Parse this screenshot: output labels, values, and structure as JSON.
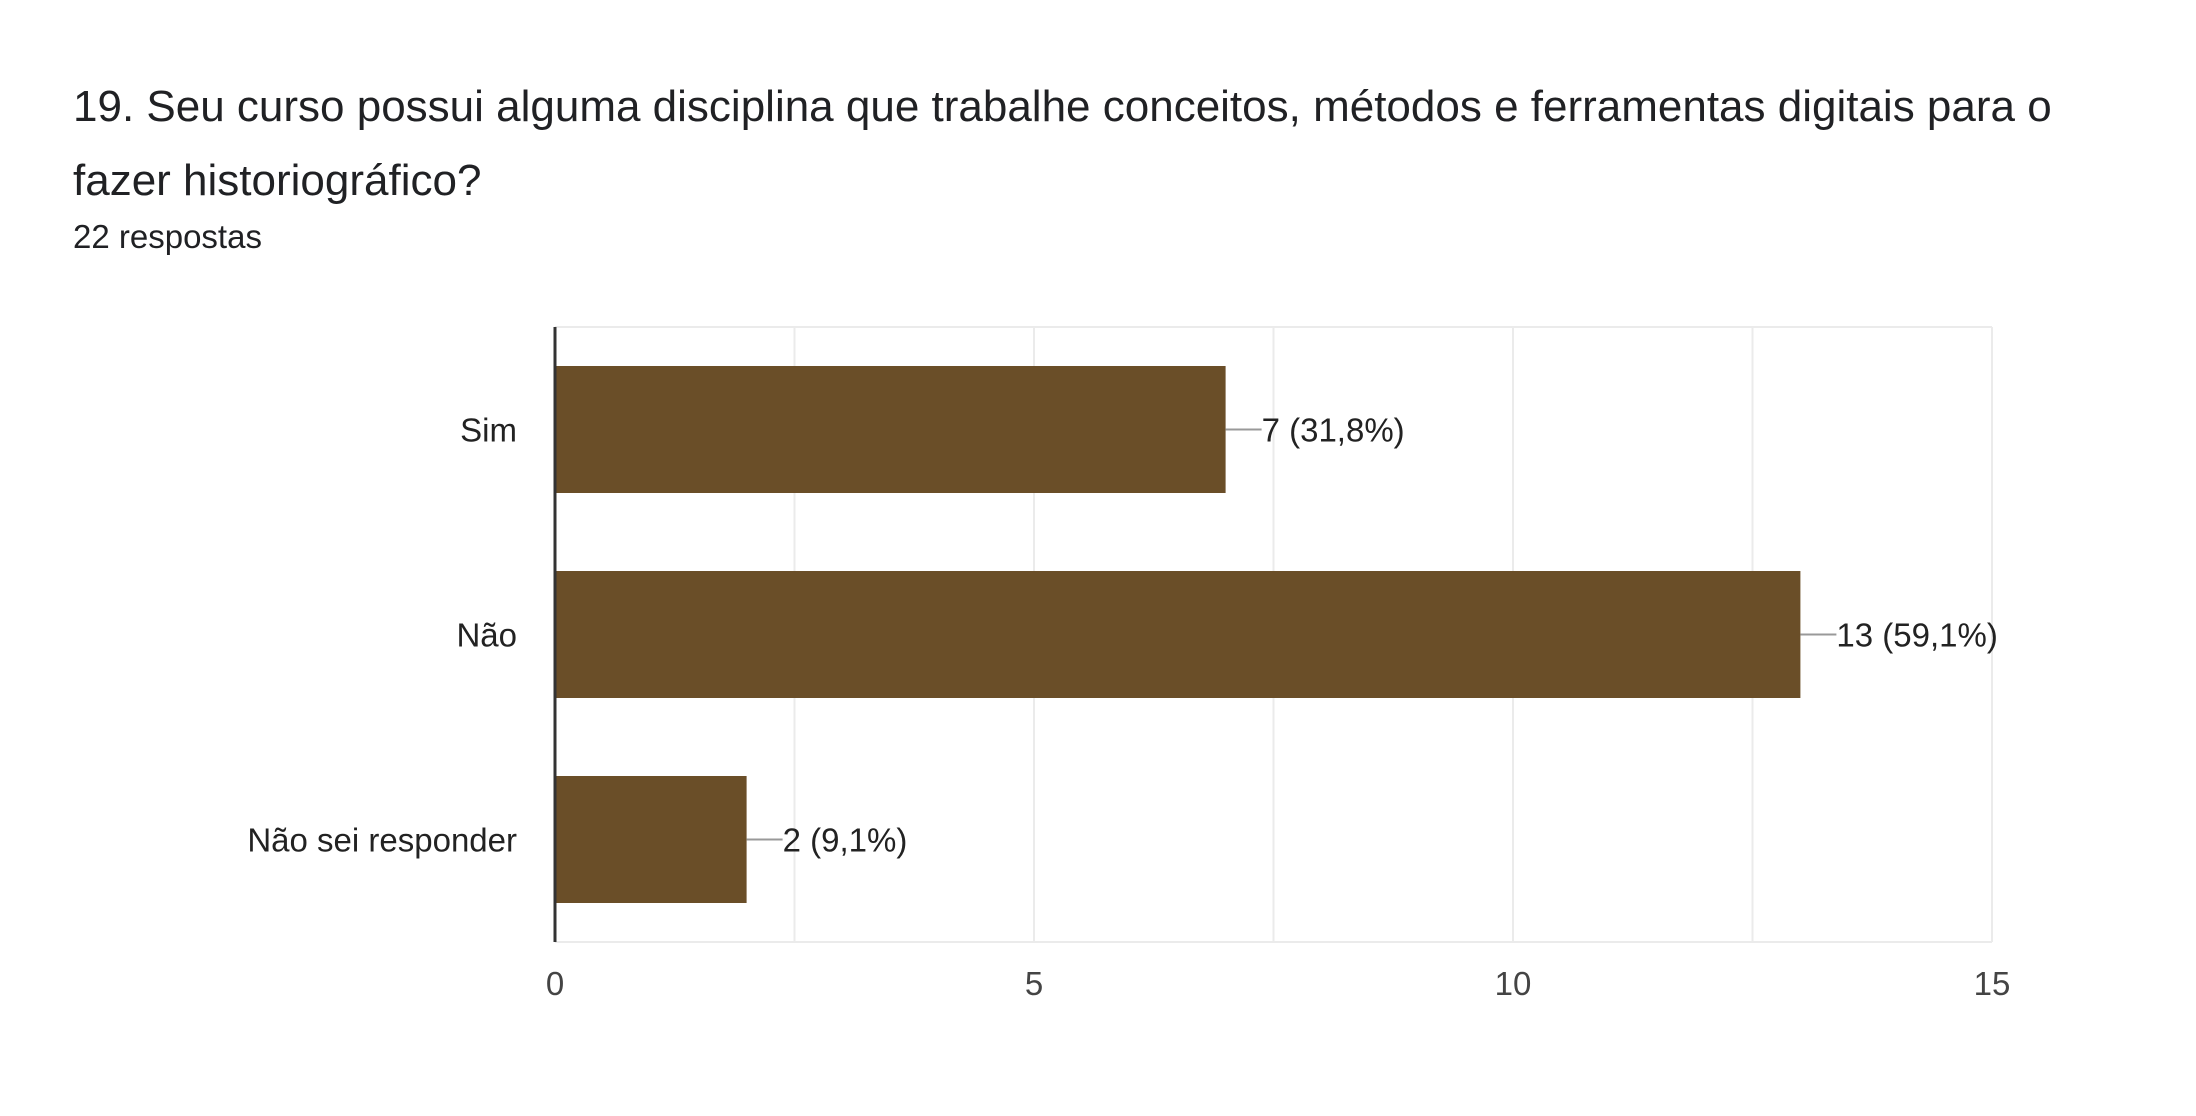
{
  "question": {
    "title": "19. Seu curso possui alguma disciplina que trabalhe conceitos, métodos e ferramentas digitais para o fazer historiográfico?",
    "responses": "22 respostas"
  },
  "colors": {
    "bar": "#6a4e28",
    "axis": "#333333",
    "grid": "#ebebeb",
    "leader": "#999999"
  },
  "chart_data": {
    "type": "bar",
    "orientation": "horizontal",
    "categories": [
      "Sim",
      "Não",
      "Não sei responder"
    ],
    "values": [
      7,
      13,
      2
    ],
    "data_labels": [
      "7 (31,8%)",
      "13 (59,1%)",
      "2 (9,1%)"
    ],
    "xlim": [
      0,
      15
    ],
    "xticks": [
      0,
      5,
      10,
      15
    ],
    "grid": true,
    "legend": "none"
  }
}
